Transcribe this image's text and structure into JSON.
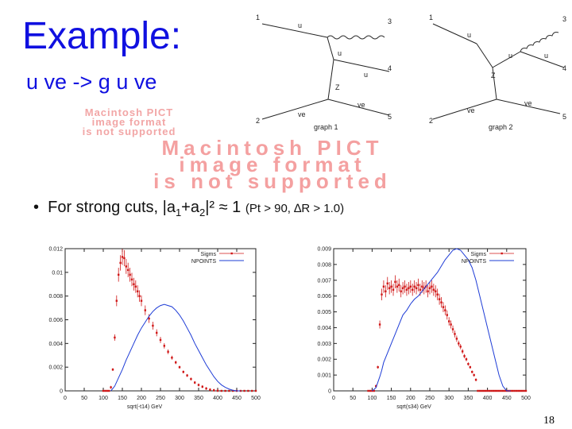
{
  "slide": {
    "title": "Example:",
    "subtitle": "u ve -> g u ve",
    "pict_placeholder_small": [
      "Macintosh PICT",
      "image format",
      "is not supported"
    ],
    "pict_placeholder_large": [
      "Macintosh PICT",
      "image format",
      "is not supported"
    ],
    "bullet": {
      "text_before": "For strong cuts, |a",
      "sub1": "1",
      "text_mid": "+a",
      "sub2": "2",
      "text_after": "|² ≈ 1",
      "cuts": "(Pt > 90, ∆R > 1.0)"
    },
    "page_number": "18"
  },
  "feynman_graphs": [
    {
      "caption": "graph  1",
      "vertex_numbers": [
        "1",
        "2",
        "3",
        "4",
        "5"
      ],
      "particle_labels": [
        "u",
        "u",
        "u",
        "Z",
        "ve",
        "ve"
      ]
    },
    {
      "caption": "graph  2",
      "vertex_numbers": [
        "1",
        "2",
        "3",
        "4",
        "5"
      ],
      "particle_labels": [
        "u",
        "u",
        "u",
        "Z",
        "ve",
        "ve"
      ]
    }
  ],
  "chart_data": [
    {
      "type": "line",
      "xlabel": "sqrt(-t14) GeV",
      "xlim": [
        0,
        500
      ],
      "ylim": [
        0,
        0.012
      ],
      "x_ticks": [
        "0",
        "50",
        "100",
        "150",
        "200",
        "250",
        "300",
        "350",
        "400",
        "450",
        "500"
      ],
      "y_ticks": [
        "0",
        "0.002",
        "0.004",
        "0.006",
        "0.008",
        "0.01",
        "0.012"
      ],
      "legend_position": "top-right",
      "series": [
        {
          "name": "Sigms",
          "color": "#d01818",
          "style": "points-with-error-bars",
          "x": [
            100,
            105,
            110,
            115,
            120,
            125,
            130,
            135,
            140,
            145,
            150,
            155,
            160,
            165,
            170,
            175,
            180,
            185,
            190,
            195,
            200,
            210,
            220,
            230,
            240,
            250,
            260,
            270,
            280,
            290,
            300,
            310,
            320,
            330,
            340,
            350,
            360,
            370,
            380,
            390,
            400,
            410,
            420,
            430,
            440,
            450,
            460,
            470,
            480,
            490,
            500
          ],
          "y": [
            0,
            0,
            0,
            0,
            0.0003,
            0.0018,
            0.0045,
            0.0076,
            0.0098,
            0.0108,
            0.0113,
            0.0112,
            0.0105,
            0.0102,
            0.0098,
            0.0094,
            0.009,
            0.0088,
            0.0084,
            0.008,
            0.0076,
            0.0068,
            0.0061,
            0.0055,
            0.0049,
            0.0043,
            0.0038,
            0.0033,
            0.0028,
            0.0024,
            0.002,
            0.0016,
            0.0013,
            0.001,
            0.0007,
            0.0005,
            0.00035,
            0.0002,
            0.0001,
            5e-05,
            2e-05,
            0,
            0,
            0,
            0,
            0,
            0,
            0,
            0,
            0,
            0
          ]
        },
        {
          "name": "NPOINTS",
          "color": "#1e3cd6",
          "style": "line",
          "x": [
            120,
            130,
            140,
            150,
            160,
            170,
            180,
            190,
            200,
            210,
            220,
            230,
            240,
            250,
            260,
            270,
            280,
            290,
            300,
            310,
            320,
            330,
            340,
            350,
            360,
            370,
            380,
            390,
            400,
            410,
            420,
            430,
            440,
            450,
            460
          ],
          "y": [
            0,
            0.0004,
            0.0011,
            0.0018,
            0.0026,
            0.0033,
            0.004,
            0.0047,
            0.0053,
            0.0058,
            0.0063,
            0.0067,
            0.007,
            0.0072,
            0.0073,
            0.0072,
            0.0071,
            0.0068,
            0.0064,
            0.0059,
            0.0053,
            0.0047,
            0.004,
            0.0034,
            0.0028,
            0.0022,
            0.0017,
            0.0012,
            0.0008,
            0.0005,
            0.0003,
            0.00015,
            5e-05,
            0,
            0
          ]
        }
      ]
    },
    {
      "type": "line",
      "xlabel": "sqrt(s34) GeV",
      "xlim": [
        0,
        500
      ],
      "ylim": [
        0,
        0.009
      ],
      "x_ticks": [
        "0",
        "50",
        "100",
        "150",
        "200",
        "250",
        "300",
        "350",
        "400",
        "450",
        "500"
      ],
      "y_ticks": [
        "0",
        "0.001",
        "0.002",
        "0.003",
        "0.004",
        "0.005",
        "0.006",
        "0.007",
        "0.008",
        "0.009"
      ],
      "legend_position": "top-right",
      "series": [
        {
          "name": "Sigms",
          "color": "#d01818",
          "style": "points-with-error-bars",
          "x": [
            90,
            95,
            100,
            105,
            110,
            115,
            120,
            125,
            130,
            135,
            140,
            145,
            150,
            155,
            160,
            165,
            170,
            175,
            180,
            185,
            190,
            195,
            200,
            205,
            210,
            215,
            220,
            225,
            230,
            235,
            240,
            245,
            250,
            255,
            260,
            265,
            270,
            275,
            280,
            285,
            290,
            295,
            300,
            305,
            310,
            315,
            320,
            325,
            330,
            335,
            340,
            345,
            350,
            355,
            360,
            365,
            370,
            375,
            380,
            385,
            390,
            395,
            400,
            405,
            410,
            415,
            420,
            425,
            430,
            435,
            440,
            445,
            450,
            455,
            460,
            465,
            470,
            475,
            480,
            485,
            490,
            495,
            500
          ],
          "y": [
            0,
            0,
            0,
            0,
            0.0003,
            0.0015,
            0.0042,
            0.0061,
            0.0066,
            0.0063,
            0.0068,
            0.0065,
            0.0066,
            0.0064,
            0.0069,
            0.0066,
            0.0067,
            0.0063,
            0.0065,
            0.0066,
            0.0064,
            0.0065,
            0.0066,
            0.0064,
            0.0066,
            0.0065,
            0.0067,
            0.0064,
            0.0066,
            0.0065,
            0.0066,
            0.0063,
            0.0065,
            0.0066,
            0.0064,
            0.0063,
            0.0061,
            0.0058,
            0.0056,
            0.0053,
            0.0051,
            0.0048,
            0.0044,
            0.0042,
            0.0039,
            0.0036,
            0.0033,
            0.003,
            0.0028,
            0.0025,
            0.0022,
            0.002,
            0.0017,
            0.0015,
            0.0012,
            0.001,
            0.0007,
            0,
            0,
            0,
            0,
            0,
            0,
            0,
            0,
            0,
            0,
            0,
            0,
            0,
            0,
            0,
            0,
            0,
            0,
            0,
            0,
            0,
            0,
            0,
            0,
            0,
            0
          ]
        },
        {
          "name": "NPOINTS",
          "color": "#1e3cd6",
          "style": "line",
          "x": [
            100,
            110,
            120,
            125,
            130,
            140,
            150,
            160,
            170,
            180,
            190,
            200,
            210,
            220,
            230,
            240,
            250,
            260,
            270,
            280,
            290,
            300,
            310,
            320,
            330,
            340,
            350,
            360,
            370,
            380,
            390,
            400,
            410,
            420,
            430,
            440,
            450,
            460
          ],
          "y": [
            0,
            0.0002,
            0.0009,
            0.0013,
            0.0018,
            0.0024,
            0.003,
            0.0036,
            0.0042,
            0.0048,
            0.0051,
            0.0055,
            0.0058,
            0.006,
            0.0063,
            0.0066,
            0.0069,
            0.0072,
            0.0075,
            0.0079,
            0.0083,
            0.0086,
            0.0089,
            0.009,
            0.0089,
            0.0086,
            0.0083,
            0.0078,
            0.007,
            0.006,
            0.005,
            0.004,
            0.003,
            0.002,
            0.001,
            0.0003,
            0,
            0
          ]
        }
      ]
    }
  ]
}
